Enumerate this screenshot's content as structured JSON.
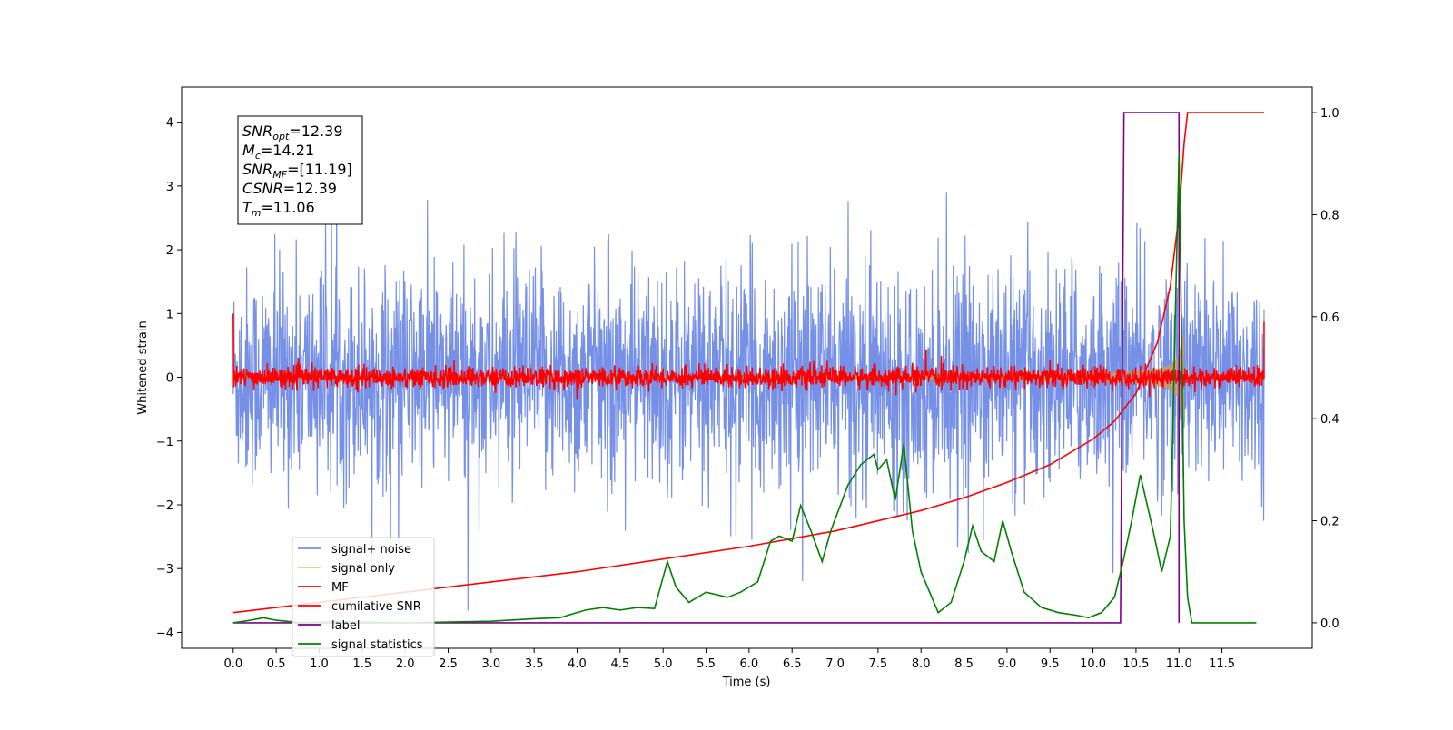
{
  "chart_data": {
    "type": "line",
    "title": "",
    "xlabel": "Time (s)",
    "ylabel": "Whitened strain",
    "y2label": "",
    "xlim": [
      -0.6,
      12.55
    ],
    "ylim": [
      -4.25,
      4.55
    ],
    "y2lim": [
      -0.05,
      1.05
    ],
    "xticks": [
      0,
      0.5,
      1,
      1.5,
      2,
      2.5,
      3,
      3.5,
      4,
      4.5,
      5,
      5.5,
      6,
      6.5,
      7,
      7.5,
      8,
      8.5,
      9,
      9.5,
      10,
      10.5,
      11,
      11.5
    ],
    "xtick_labels": [
      "0.0",
      "0.5",
      "1.0",
      "1.5",
      "2.0",
      "2.5",
      "3.0",
      "3.5",
      "4.0",
      "4.5",
      "5.0",
      "5.5",
      "6.0",
      "6.5",
      "7.0",
      "7.5",
      "8.0",
      "8.5",
      "9.0",
      "9.5",
      "10.0",
      "10.5",
      "11.0",
      "11.5"
    ],
    "yticks": [
      -4,
      -3,
      -2,
      -1,
      0,
      1,
      2,
      3,
      4
    ],
    "ytick_labels": [
      "−4",
      "−3",
      "−2",
      "−1",
      "0",
      "1",
      "2",
      "3",
      "4"
    ],
    "y2ticks": [
      0,
      0.2,
      0.4,
      0.6,
      0.8,
      1.0
    ],
    "y2tick_labels": [
      "0.0",
      "0.2",
      "0.4",
      "0.6",
      "0.8",
      "1.0"
    ],
    "grid": false,
    "legend_position": "lower-left",
    "series": [
      {
        "name": "signal+ noise",
        "color": "#7590e6",
        "axis": "left",
        "kind": "noise",
        "x_range": [
          0,
          11.99
        ],
        "amplitude_std": 0.85
      },
      {
        "name": "signal only",
        "color": "#f5c86e",
        "axis": "left",
        "kind": "chirp",
        "x_range": [
          0,
          11.99
        ],
        "peak_time": 11.06,
        "peak_amplitude": 0.7
      },
      {
        "name": "MF",
        "color": "#ff0000",
        "axis": "left",
        "kind": "noise",
        "x_range": [
          0,
          11.99
        ],
        "amplitude_std": 0.08,
        "start_value": 1.0,
        "end_value": 0.87
      },
      {
        "name": "cumilative SNR",
        "color": "#ff0000",
        "axis": "right",
        "x": [
          0,
          1,
          2,
          3,
          4,
          5,
          6,
          7,
          8,
          8.5,
          9,
          9.5,
          10,
          10.25,
          10.5,
          10.75,
          10.9,
          11.0,
          11.06,
          11.1,
          11.99
        ],
        "values": [
          0.02,
          0.04,
          0.06,
          0.08,
          0.1,
          0.125,
          0.15,
          0.18,
          0.22,
          0.245,
          0.275,
          0.31,
          0.36,
          0.395,
          0.45,
          0.55,
          0.66,
          0.8,
          0.94,
          1.0,
          1.0
        ]
      },
      {
        "name": "label",
        "color": "#800080",
        "axis": "right",
        "x": [
          0,
          10.32,
          10.36,
          11.0,
          11.0
        ],
        "values": [
          0,
          0,
          1,
          1,
          0
        ]
      },
      {
        "name": "signal statistics",
        "color": "#008000",
        "axis": "right",
        "x": [
          0,
          0.2,
          0.35,
          0.5,
          0.8,
          1.2,
          2,
          3,
          3.5,
          3.8,
          4.0,
          4.1,
          4.3,
          4.5,
          4.7,
          4.9,
          5.05,
          5.15,
          5.3,
          5.5,
          5.75,
          5.9,
          6.1,
          6.25,
          6.35,
          6.5,
          6.6,
          6.72,
          6.85,
          6.95,
          7.15,
          7.3,
          7.45,
          7.5,
          7.6,
          7.7,
          7.8,
          7.9,
          8.0,
          8.2,
          8.35,
          8.5,
          8.6,
          8.7,
          8.85,
          8.95,
          9.05,
          9.2,
          9.4,
          9.6,
          9.8,
          9.95,
          10.1,
          10.25,
          10.35,
          10.45,
          10.55,
          10.7,
          10.8,
          10.9,
          11.0,
          11.06,
          11.1,
          11.15,
          11.2,
          11.3,
          11.5,
          11.9
        ],
        "values": [
          0,
          0.005,
          0.01,
          0.005,
          0,
          0.002,
          0,
          0.003,
          0.008,
          0.01,
          0.02,
          0.025,
          0.03,
          0.025,
          0.03,
          0.028,
          0.12,
          0.07,
          0.04,
          0.06,
          0.05,
          0.06,
          0.08,
          0.16,
          0.17,
          0.16,
          0.23,
          0.18,
          0.12,
          0.18,
          0.27,
          0.31,
          0.33,
          0.3,
          0.32,
          0.24,
          0.35,
          0.18,
          0.1,
          0.02,
          0.04,
          0.12,
          0.19,
          0.14,
          0.12,
          0.2,
          0.14,
          0.06,
          0.03,
          0.02,
          0.015,
          0.01,
          0.02,
          0.05,
          0.12,
          0.2,
          0.29,
          0.18,
          0.1,
          0.17,
          0.92,
          0.2,
          0.05,
          0,
          0,
          0,
          0,
          0
        ]
      }
    ],
    "annotation": [
      {
        "label": "SNR",
        "sub": "opt",
        "value": "=12.39"
      },
      {
        "label": "M",
        "sub": "c",
        "value": "=14.21"
      },
      {
        "label": "SNR",
        "sub": "MF",
        "value": "=[11.19]"
      },
      {
        "label": "CSNR",
        "sub": "",
        "value": "=12.39"
      },
      {
        "label": "T",
        "sub": "m",
        "value": "=11.06"
      }
    ]
  }
}
